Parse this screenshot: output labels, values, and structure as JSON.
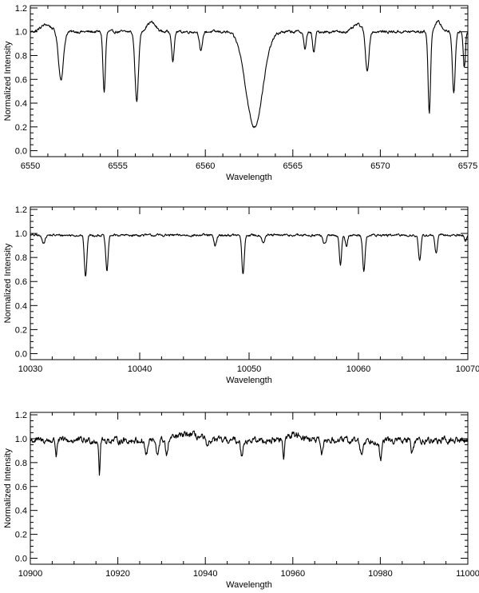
{
  "chart_data": [
    {
      "type": "line",
      "xlabel": "Wavelength",
      "ylabel": "Normalized Intensity",
      "xlim": [
        6550,
        6575
      ],
      "ylim": [
        -0.05,
        1.22
      ],
      "xticks": [
        6550,
        6555,
        6560,
        6565,
        6570,
        6575
      ],
      "yticks": [
        0.0,
        0.2,
        0.4,
        0.6,
        0.8,
        1.0,
        1.2
      ],
      "x_minor_step": 1,
      "y_minor_step": 0.05,
      "continuum": 1.0,
      "noise": 0.012,
      "lines": [
        {
          "center": 6551.75,
          "depth": 0.4,
          "width": 0.14
        },
        {
          "center": 6554.22,
          "depth": 0.51,
          "width": 0.07
        },
        {
          "center": 6556.08,
          "depth": 0.58,
          "width": 0.1
        },
        {
          "center": 6558.15,
          "depth": 0.25,
          "width": 0.07
        },
        {
          "center": 6559.75,
          "depth": 0.17,
          "width": 0.08
        },
        {
          "center": 6562.8,
          "depth": 0.8,
          "width": 0.48
        },
        {
          "center": 6565.7,
          "depth": 0.15,
          "width": 0.07
        },
        {
          "center": 6566.2,
          "depth": 0.18,
          "width": 0.07
        },
        {
          "center": 6569.25,
          "depth": 0.33,
          "width": 0.1
        },
        {
          "center": 6572.8,
          "depth": 0.69,
          "width": 0.07
        },
        {
          "center": 6574.2,
          "depth": 0.52,
          "width": 0.08
        },
        {
          "center": 6574.8,
          "depth": 0.3,
          "width": 0.06
        }
      ],
      "bumps": [
        {
          "center": 6550.9,
          "height": 0.06,
          "width": 0.3
        },
        {
          "center": 6556.9,
          "height": 0.08,
          "width": 0.25
        },
        {
          "center": 6568.7,
          "height": 0.06,
          "width": 0.25
        },
        {
          "center": 6573.3,
          "height": 0.08,
          "width": 0.2
        }
      ]
    },
    {
      "type": "line",
      "xlabel": "Wavelength",
      "ylabel": "Normalized Intensity",
      "xlim": [
        10030,
        10070
      ],
      "ylim": [
        -0.05,
        1.22
      ],
      "xticks": [
        10030,
        10040,
        10050,
        10060,
        10070
      ],
      "yticks": [
        0.0,
        0.2,
        0.4,
        0.6,
        0.8,
        1.0,
        1.2
      ],
      "x_minor_step": 2,
      "y_minor_step": 0.05,
      "continuum": 0.985,
      "noise": 0.01,
      "lines": [
        {
          "center": 10031.2,
          "depth": 0.06,
          "width": 0.15
        },
        {
          "center": 10035.05,
          "depth": 0.35,
          "width": 0.11
        },
        {
          "center": 10037.0,
          "depth": 0.3,
          "width": 0.11
        },
        {
          "center": 10046.9,
          "depth": 0.09,
          "width": 0.12
        },
        {
          "center": 10049.45,
          "depth": 0.33,
          "width": 0.11
        },
        {
          "center": 10051.3,
          "depth": 0.06,
          "width": 0.12
        },
        {
          "center": 10056.9,
          "depth": 0.07,
          "width": 0.15
        },
        {
          "center": 10058.35,
          "depth": 0.26,
          "width": 0.1
        },
        {
          "center": 10058.9,
          "depth": 0.09,
          "width": 0.1
        },
        {
          "center": 10060.5,
          "depth": 0.3,
          "width": 0.11
        },
        {
          "center": 10065.6,
          "depth": 0.22,
          "width": 0.11
        },
        {
          "center": 10067.1,
          "depth": 0.15,
          "width": 0.11
        },
        {
          "center": 10069.8,
          "depth": 0.05,
          "width": 0.1
        }
      ],
      "bumps": []
    },
    {
      "type": "line",
      "xlabel": "Wavelength",
      "ylabel": "Normalized Intensity",
      "xlim": [
        10900,
        11000
      ],
      "ylim": [
        -0.05,
        1.22
      ],
      "xticks": [
        10900,
        10920,
        10940,
        10960,
        10980,
        11000
      ],
      "yticks": [
        0.0,
        0.2,
        0.4,
        0.6,
        0.8,
        1.0,
        1.2
      ],
      "x_minor_step": 5,
      "y_minor_step": 0.05,
      "continuum": 0.985,
      "noise": 0.028,
      "lines": [
        {
          "center": 10905.9,
          "depth": 0.13,
          "width": 0.15
        },
        {
          "center": 10915.8,
          "depth": 0.28,
          "width": 0.15
        },
        {
          "center": 10926.5,
          "depth": 0.12,
          "width": 0.3
        },
        {
          "center": 10929.0,
          "depth": 0.12,
          "width": 0.3
        },
        {
          "center": 10931.2,
          "depth": 0.14,
          "width": 0.25
        },
        {
          "center": 10940.5,
          "depth": 0.08,
          "width": 0.3
        },
        {
          "center": 10948.3,
          "depth": 0.13,
          "width": 0.25
        },
        {
          "center": 10957.9,
          "depth": 0.18,
          "width": 0.2
        },
        {
          "center": 10966.6,
          "depth": 0.14,
          "width": 0.25
        },
        {
          "center": 10975.7,
          "depth": 0.12,
          "width": 0.3
        },
        {
          "center": 10980.1,
          "depth": 0.17,
          "width": 0.25
        },
        {
          "center": 10987.3,
          "depth": 0.1,
          "width": 0.3
        }
      ],
      "bumps": [
        {
          "center": 10936.0,
          "height": 0.05,
          "width": 2.5
        },
        {
          "center": 10960.5,
          "height": 0.05,
          "width": 2.0
        }
      ]
    }
  ]
}
